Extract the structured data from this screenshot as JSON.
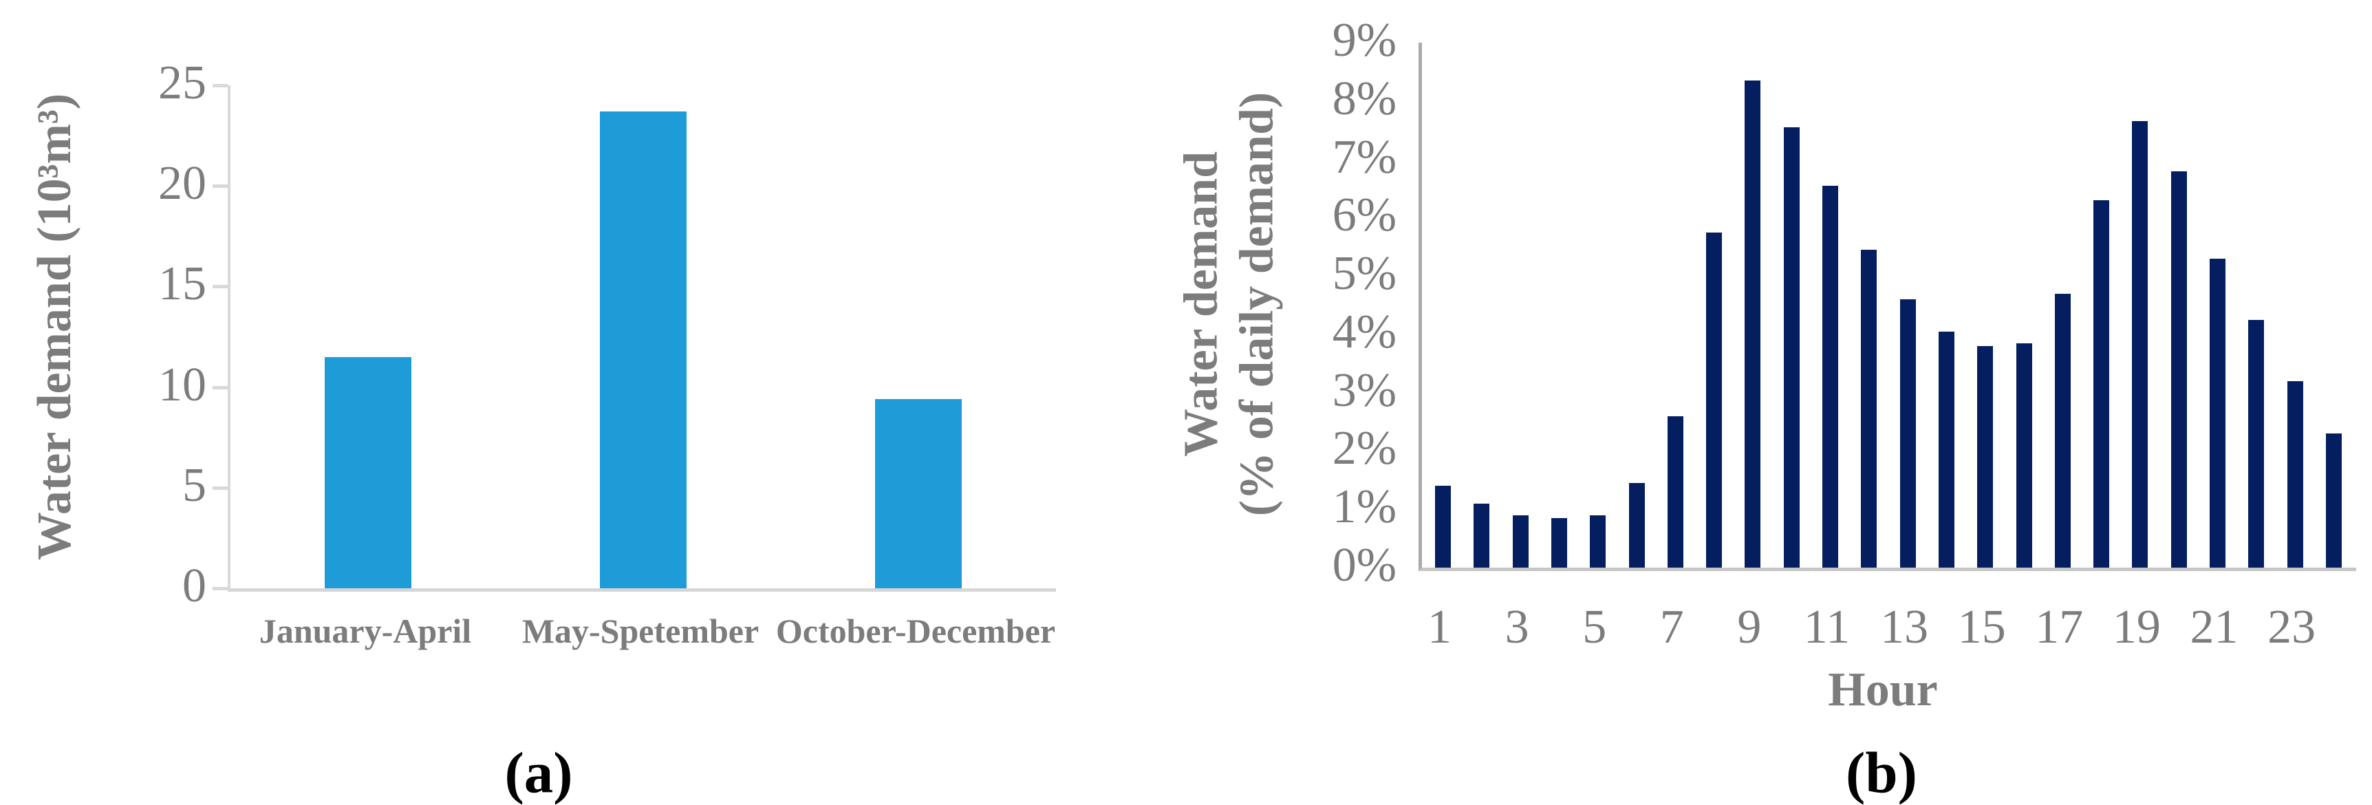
{
  "figure": {
    "caption_a": "(a)",
    "caption_b": "(b)"
  },
  "chart_data": [
    {
      "id": "a",
      "type": "bar",
      "categories": [
        "January-April",
        "May-Spetember",
        "October-December"
      ],
      "values": [
        11.5,
        23.7,
        9.4
      ],
      "ylabel": "Water demand (10³m³)",
      "xlabel": "",
      "ylim": [
        0,
        25
      ],
      "y_tick_values": [
        0,
        5,
        10,
        15,
        20,
        25
      ],
      "y_tick_labels": [
        "0",
        "5",
        "10",
        "15",
        "20",
        "25"
      ],
      "grid": "off",
      "legend": "none",
      "bar_color": "#1E9CD8",
      "axis_color": "#d9d9d9",
      "text_color": "#7c7c7c"
    },
    {
      "id": "b",
      "type": "bar",
      "x": [
        1,
        2,
        3,
        4,
        5,
        6,
        7,
        8,
        9,
        10,
        11,
        12,
        13,
        14,
        15,
        16,
        17,
        18,
        19,
        20,
        21,
        22,
        23,
        24
      ],
      "values": [
        1.4,
        1.1,
        0.9,
        0.85,
        0.9,
        1.45,
        2.6,
        5.75,
        8.35,
        7.55,
        6.55,
        5.45,
        4.6,
        4.05,
        3.8,
        3.85,
        4.7,
        6.3,
        7.65,
        6.8,
        5.3,
        4.25,
        3.2,
        2.3
      ],
      "ylabel_lines": [
        "Water demand",
        "(% of daily demand)"
      ],
      "xlabel": "Hour",
      "ylim": [
        0,
        9
      ],
      "y_tick_values": [
        0,
        1,
        2,
        3,
        4,
        5,
        6,
        7,
        8,
        9
      ],
      "y_tick_labels": [
        "0%",
        "1%",
        "2%",
        "3%",
        "4%",
        "5%",
        "6%",
        "7%",
        "8%",
        "9%"
      ],
      "x_tick_values": [
        1,
        3,
        5,
        7,
        9,
        11,
        13,
        15,
        17,
        19,
        21,
        23
      ],
      "grid": "off",
      "legend": "none",
      "bar_color": "#041E60",
      "axis_color": "#ababab",
      "text_color": "#7c7c7c"
    }
  ]
}
